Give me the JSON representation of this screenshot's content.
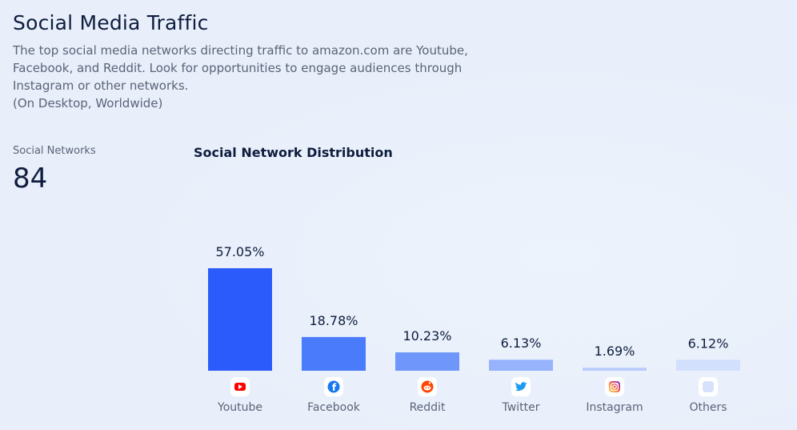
{
  "header": {
    "title": "Social Media Traffic",
    "description_lines": [
      "The top social media networks directing traffic to amazon.com are Youtube,",
      "Facebook, and Reddit. Look for opportunities to engage audiences through",
      "Instagram or other networks.",
      "(On Desktop, Worldwide)"
    ]
  },
  "metric": {
    "label": "Social Networks",
    "value": "84"
  },
  "chart_data": {
    "type": "bar",
    "title": "Social Network Distribution",
    "categories": [
      "Youtube",
      "Facebook",
      "Reddit",
      "Twitter",
      "Instagram",
      "Others"
    ],
    "values": [
      57.05,
      18.78,
      10.23,
      6.13,
      1.69,
      6.12
    ],
    "value_labels": [
      "57.05%",
      "18.78%",
      "10.23%",
      "6.13%",
      "1.69%",
      "6.12%"
    ],
    "icons": [
      "youtube-icon",
      "facebook-icon",
      "reddit-icon",
      "twitter-icon",
      "instagram-icon",
      "others-icon"
    ],
    "bar_colors": [
      "#2b5cfb",
      "#4a7bfb",
      "#6f97fb",
      "#96b3fc",
      "#b9cdfd",
      "#d2e0fd"
    ],
    "xlabel": "",
    "ylabel": "",
    "ylim": [
      0,
      57.05
    ],
    "grid": false,
    "legend": "none"
  }
}
